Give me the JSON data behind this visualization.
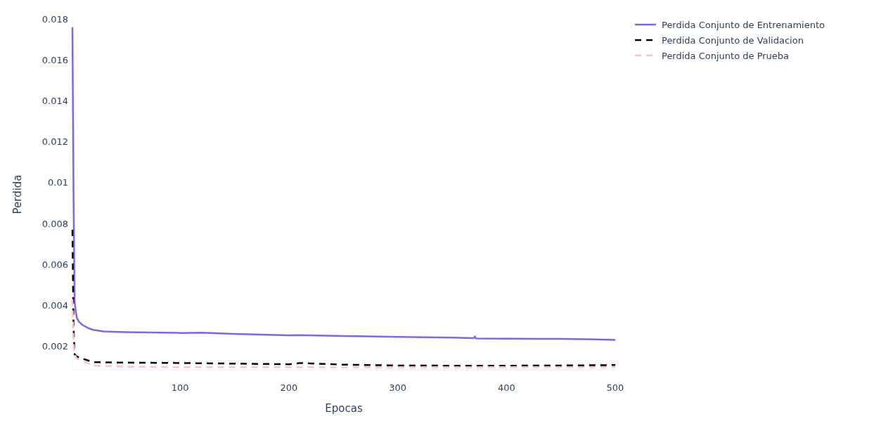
{
  "chart_data": {
    "type": "line",
    "xlabel": "Epocas",
    "ylabel": "Perdida",
    "xlim": [
      1,
      500
    ],
    "ylim": [
      0.00085,
      0.018
    ],
    "xticks": [
      100,
      200,
      300,
      400,
      500
    ],
    "yticks": [
      0.002,
      0.004,
      0.006,
      0.008,
      {
        "value": 0.01,
        "label": "0.01"
      },
      0.012,
      0.014,
      0.016,
      0.018
    ],
    "grid": false,
    "legend": "top right",
    "series": [
      {
        "name": "Perdida Conjunto de Entrenamiento",
        "color": "#7b68ee",
        "line_style": "solid",
        "x": [
          1,
          2,
          3,
          4,
          5,
          7,
          10,
          15,
          20,
          30,
          50,
          100,
          120,
          150,
          200,
          210,
          250,
          300,
          350,
          370,
          371,
          372,
          400,
          450,
          480,
          500
        ],
        "values": [
          0.0176,
          0.0097,
          0.0042,
          0.0037,
          0.0034,
          0.0032,
          0.00305,
          0.0029,
          0.0028,
          0.00272,
          0.00269,
          0.00265,
          0.00266,
          0.0026,
          0.00253,
          0.00254,
          0.0025,
          0.00246,
          0.00242,
          0.0024,
          0.00248,
          0.00238,
          0.00237,
          0.00236,
          0.00234,
          0.00231
        ]
      },
      {
        "name": "Perdida Conjunto de Validacion",
        "color": "#000000",
        "line_style": "dashed",
        "x": [
          1,
          2,
          3,
          5,
          10,
          20,
          50,
          100,
          150,
          200,
          210,
          250,
          300,
          350,
          400,
          450,
          500
        ],
        "values": [
          0.0077,
          0.003,
          0.0016,
          0.0015,
          0.0014,
          0.00122,
          0.0012,
          0.00118,
          0.00115,
          0.00112,
          0.00118,
          0.0011,
          0.00106,
          0.00105,
          0.00105,
          0.00106,
          0.00108
        ]
      },
      {
        "name": "Perdida Conjunto de Prueba",
        "color": "#ffc0cb",
        "line_style": "dashed",
        "x": [
          1,
          2,
          3,
          5,
          10,
          20,
          50,
          100,
          150,
          200,
          250,
          300,
          350,
          400,
          450,
          500
        ],
        "values": [
          0.0043,
          0.0023,
          0.0016,
          0.0014,
          0.0013,
          0.00105,
          0.001,
          0.00098,
          0.00098,
          0.00098,
          0.00097,
          0.00097,
          0.00097,
          0.00098,
          0.00098,
          0.00098
        ]
      }
    ]
  }
}
